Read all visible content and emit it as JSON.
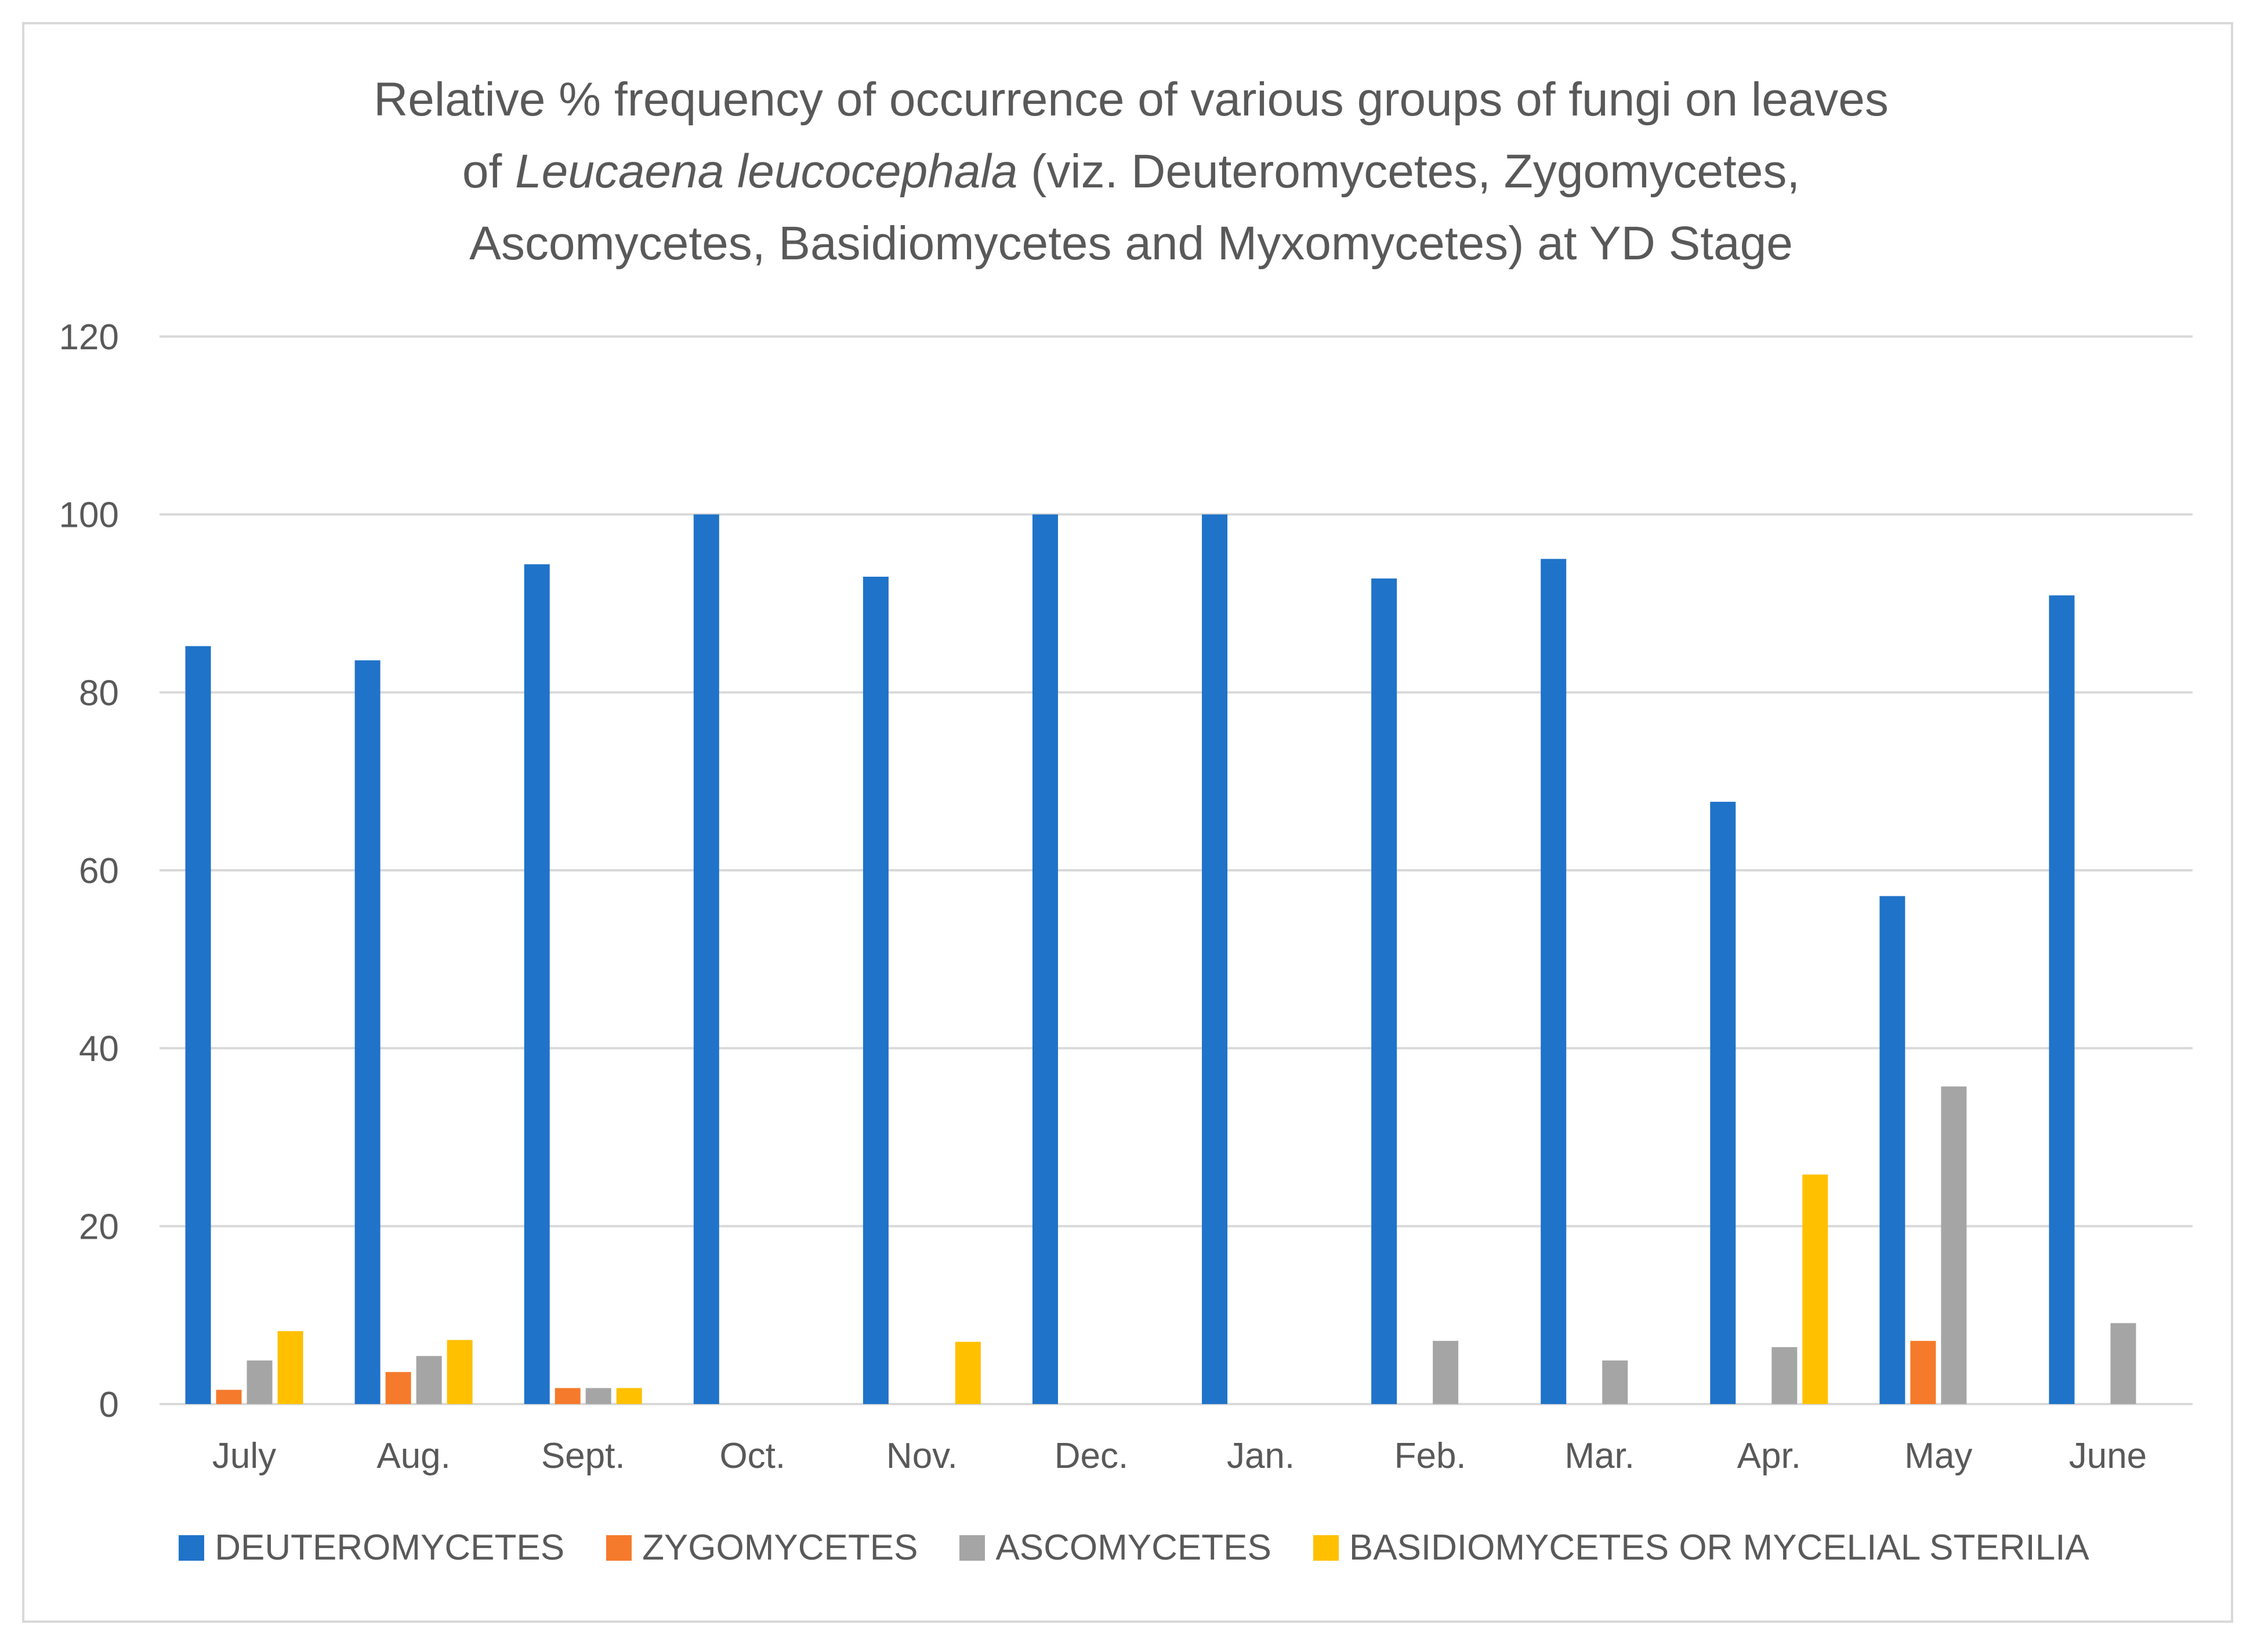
{
  "title": {
    "line1": "Relative % frequency of occurrence of various groups of fungi on leaves",
    "line2_prefix": "of ",
    "line2_italic": "Leucaena leucocephala",
    "line2_suffix": " (viz. Deuteromycetes, Zygomycetes,",
    "line3": "Ascomycetes, Basidiomycetes and Myxomycetes) at YD Stage"
  },
  "chart_data": {
    "type": "bar",
    "title": "Relative % frequency of occurrence of various groups of fungi on leaves of Leucaena leucocephala (viz. Deuteromycetes, Zygomycetes, Ascomycetes, Basidiomycetes and Myxomycetes) at YD Stage",
    "categories": [
      "July",
      "Aug.",
      "Sept.",
      "Oct.",
      "Nov.",
      "Dec.",
      "Jan.",
      "Feb.",
      "Mar.",
      "Apr.",
      "May",
      "June"
    ],
    "series": [
      {
        "name": "DEUTEROMYCETES",
        "color": "#1f73c9",
        "values": [
          85.2,
          83.6,
          94.4,
          100,
          93,
          100,
          100,
          92.8,
          95,
          67.7,
          57.1,
          90.9
        ]
      },
      {
        "name": "ZYGOMYCETES",
        "color": "#f57a2b",
        "values": [
          1.6,
          3.6,
          1.8,
          0,
          0,
          0,
          0,
          0,
          0,
          0,
          7.1,
          0
        ]
      },
      {
        "name": "ASCOMYCETES",
        "color": "#a5a5a5",
        "values": [
          4.9,
          5.4,
          1.8,
          0,
          0,
          0,
          0,
          7.1,
          4.9,
          6.4,
          35.7,
          9.1
        ]
      },
      {
        "name": "BASIDIOMYCETES OR MYCELIAL STERILIA",
        "color": "#ffc000",
        "values": [
          8.2,
          7.2,
          1.8,
          0,
          7,
          0,
          0,
          0,
          0,
          25.8,
          0,
          0
        ]
      }
    ],
    "ylim": [
      0,
      120
    ],
    "yticks": [
      0,
      20,
      40,
      60,
      80,
      100,
      120
    ],
    "xlabel": "",
    "ylabel": "",
    "grid": true,
    "legend_position": "bottom"
  },
  "colors": {
    "gridline": "#d9d9d9",
    "tick_text": "#595959"
  }
}
